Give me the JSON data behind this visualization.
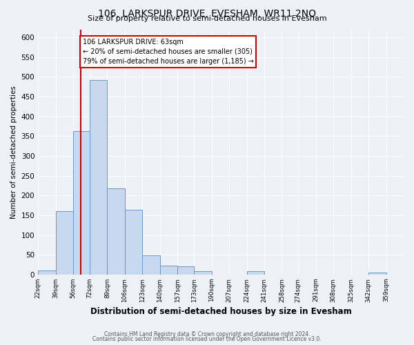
{
  "title": "106, LARKSPUR DRIVE, EVESHAM, WR11 2NQ",
  "subtitle": "Size of property relative to semi-detached houses in Evesham",
  "xlabel": "Distribution of semi-detached houses by size in Evesham",
  "ylabel": "Number of semi-detached properties",
  "bin_labels": [
    "22sqm",
    "39sqm",
    "56sqm",
    "72sqm",
    "89sqm",
    "106sqm",
    "123sqm",
    "140sqm",
    "157sqm",
    "173sqm",
    "190sqm",
    "207sqm",
    "224sqm",
    "241sqm",
    "258sqm",
    "274sqm",
    "291sqm",
    "308sqm",
    "325sqm",
    "342sqm",
    "359sqm"
  ],
  "bin_edges": [
    22,
    39,
    56,
    72,
    89,
    106,
    123,
    140,
    157,
    173,
    190,
    207,
    224,
    241,
    258,
    274,
    291,
    308,
    325,
    342,
    359,
    376
  ],
  "bar_values": [
    10,
    160,
    362,
    492,
    218,
    163,
    48,
    22,
    20,
    8,
    0,
    0,
    8,
    0,
    0,
    0,
    0,
    0,
    0,
    5,
    0
  ],
  "bar_color": "#c8d8ee",
  "bar_edge_color": "#6699cc",
  "property_value": 63,
  "property_label": "106 LARKSPUR DRIVE: 63sqm",
  "pct_smaller": 20,
  "count_smaller": 305,
  "pct_larger": 79,
  "count_larger": 1185,
  "vline_color": "#cc0000",
  "annotation_box_edge_color": "#cc0000",
  "ylim": [
    0,
    620
  ],
  "yticks": [
    0,
    50,
    100,
    150,
    200,
    250,
    300,
    350,
    400,
    450,
    500,
    550,
    600
  ],
  "footer1": "Contains HM Land Registry data © Crown copyright and database right 2024.",
  "footer2": "Contains public sector information licensed under the Open Government Licence v3.0.",
  "bg_color": "#eef2f8",
  "plot_bg_color": "#eef2f8"
}
